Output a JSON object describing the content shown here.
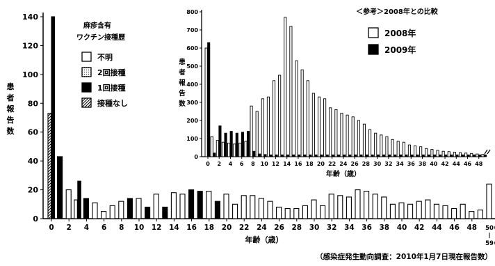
{
  "chart_data": [
    {
      "type": "bar",
      "title": "",
      "ylabel": "患者報告数",
      "xlabel": "年齢（歳）",
      "ylim": [
        0,
        140
      ],
      "yticks": [
        0,
        20,
        40,
        60,
        80,
        100,
        120,
        140
      ],
      "x_tick_labels": [
        "0",
        "2",
        "4",
        "6",
        "8",
        "10",
        "12",
        "14",
        "16",
        "18",
        "20",
        "22",
        "24",
        "26",
        "28",
        "30",
        "32",
        "34",
        "36",
        "38",
        "40",
        "42",
        "44",
        "46",
        "48"
      ],
      "x_tick_labels_tail": [
        "50",
        "60",
        "70",
        "80"
      ],
      "x_tick_labels_tail_low": [
        "59",
        "69",
        "79"
      ],
      "legend_title_line1": "麻疹含有",
      "legend_title_line2": "ワクチン接種歴",
      "legend": [
        {
          "label": "不明",
          "pattern": "white"
        },
        {
          "label": "2回接種",
          "pattern": "dotted"
        },
        {
          "label": "1回接種",
          "pattern": "black"
        },
        {
          "label": "接種なし",
          "pattern": "hatched"
        }
      ],
      "groups": [
        "0",
        "1",
        "2",
        "3",
        "4",
        "5",
        "6",
        "7",
        "8",
        "9",
        "10",
        "11",
        "12",
        "13",
        "14",
        "15",
        "16",
        "17",
        "18",
        "19",
        "20",
        "21",
        "22",
        "23",
        "24",
        "25",
        "26",
        "27",
        "28",
        "29",
        "30",
        "31",
        "32",
        "33",
        "34",
        "35",
        "36",
        "37",
        "38",
        "39",
        "40",
        "41",
        "42",
        "43",
        "44",
        "45",
        "46",
        "47",
        "48",
        "49",
        "50-59",
        "60-69",
        "70-79",
        "80-"
      ],
      "bars": [
        [
          {
            "v": 73,
            "p": "hatched"
          },
          {
            "v": 140,
            "p": "black"
          }
        ],
        [
          {
            "v": 43,
            "p": "black"
          }
        ],
        [
          {
            "v": 20,
            "p": "white"
          }
        ],
        [
          {
            "v": 13,
            "p": "white"
          },
          {
            "v": 26,
            "p": "black"
          }
        ],
        [
          {
            "v": 14,
            "p": "black"
          }
        ],
        [
          {
            "v": 11,
            "p": "white"
          }
        ],
        [
          {
            "v": 5,
            "p": "white"
          }
        ],
        [
          {
            "v": 9,
            "p": "white"
          }
        ],
        [
          {
            "v": 12,
            "p": "white"
          }
        ],
        [
          {
            "v": 14,
            "p": "black"
          }
        ],
        [
          {
            "v": 14,
            "p": "white"
          }
        ],
        [
          {
            "v": 8,
            "p": "black"
          }
        ],
        [
          {
            "v": 17,
            "p": "white"
          }
        ],
        [
          {
            "v": 8,
            "p": "black"
          }
        ],
        [
          {
            "v": 18,
            "p": "white"
          }
        ],
        [
          {
            "v": 17,
            "p": "white"
          }
        ],
        [
          {
            "v": 20,
            "p": "black"
          }
        ],
        [
          {
            "v": 19,
            "p": "black"
          }
        ],
        [
          {
            "v": 19,
            "p": "white"
          }
        ],
        [
          {
            "v": 12,
            "p": "black"
          }
        ],
        [
          {
            "v": 17,
            "p": "white"
          }
        ],
        [
          {
            "v": 10,
            "p": "white"
          }
        ],
        [
          {
            "v": 16,
            "p": "white"
          }
        ],
        [
          {
            "v": 16,
            "p": "white"
          }
        ],
        [
          {
            "v": 14,
            "p": "white"
          }
        ],
        [
          {
            "v": 12,
            "p": "white"
          }
        ],
        [
          {
            "v": 8,
            "p": "white"
          }
        ],
        [
          {
            "v": 7,
            "p": "white"
          }
        ],
        [
          {
            "v": 7,
            "p": "white"
          }
        ],
        [
          {
            "v": 9,
            "p": "white"
          }
        ],
        [
          {
            "v": 13,
            "p": "white"
          }
        ],
        [
          {
            "v": 9,
            "p": "white"
          }
        ],
        [
          {
            "v": 17,
            "p": "white"
          }
        ],
        [
          {
            "v": 16,
            "p": "white"
          }
        ],
        [
          {
            "v": 15,
            "p": "white"
          }
        ],
        [
          {
            "v": 20,
            "p": "white"
          }
        ],
        [
          {
            "v": 19,
            "p": "white"
          }
        ],
        [
          {
            "v": 17,
            "p": "white"
          }
        ],
        [
          {
            "v": 15,
            "p": "white"
          }
        ],
        [
          {
            "v": 10,
            "p": "white"
          }
        ],
        [
          {
            "v": 11,
            "p": "white"
          }
        ],
        [
          {
            "v": 10,
            "p": "white"
          }
        ],
        [
          {
            "v": 12,
            "p": "white"
          }
        ],
        [
          {
            "v": 13,
            "p": "white"
          }
        ],
        [
          {
            "v": 10,
            "p": "white"
          }
        ],
        [
          {
            "v": 9,
            "p": "white"
          }
        ],
        [
          {
            "v": 7,
            "p": "white"
          }
        ],
        [
          {
            "v": 10,
            "p": "white"
          }
        ],
        [
          {
            "v": 5,
            "p": "white"
          }
        ],
        [
          {
            "v": 6,
            "p": "white"
          }
        ],
        [
          {
            "v": 24,
            "p": "white"
          }
        ],
        [
          {
            "v": 15,
            "p": "white"
          }
        ],
        [
          {
            "v": 15,
            "p": "white"
          }
        ],
        [
          {
            "v": 2,
            "p": "white"
          }
        ]
      ],
      "source_note": "（感染症発生動向調査：2010年1月7日現在報告数）"
    },
    {
      "type": "bar",
      "title": "＜参考＞2008年との比較",
      "ylabel": "患者報告数",
      "xlabel": "年齢（歳）",
      "ylim": [
        0,
        800
      ],
      "yticks": [
        0,
        100,
        200,
        300,
        400,
        500,
        600,
        700,
        800
      ],
      "x_tick_labels": [
        "0",
        "2",
        "4",
        "6",
        "8",
        "10",
        "12",
        "14",
        "16",
        "18",
        "20",
        "22",
        "24",
        "26",
        "28",
        "30",
        "32",
        "34",
        "36",
        "38",
        "40",
        "42",
        "44",
        "46",
        "48"
      ],
      "series": [
        {
          "name": "2008年",
          "pattern": "white",
          "values": [
            600,
            110,
            90,
            80,
            75,
            70,
            75,
            85,
            280,
            250,
            320,
            330,
            420,
            450,
            770,
            720,
            530,
            480,
            420,
            350,
            330,
            320,
            270,
            260,
            240,
            230,
            220,
            200,
            180,
            150,
            130,
            120,
            110,
            95,
            85,
            80,
            65,
            60,
            55,
            45,
            40,
            35,
            30,
            28,
            25,
            22,
            20,
            18,
            15,
            13
          ]
        },
        {
          "name": "2009年",
          "pattern": "black",
          "values": [
            630,
            20,
            170,
            130,
            140,
            130,
            135,
            140,
            30,
            15,
            12,
            10,
            10,
            10,
            10,
            10,
            10,
            10,
            10,
            10,
            10,
            10,
            10,
            10,
            10,
            10,
            10,
            10,
            10,
            10,
            10,
            10,
            10,
            10,
            10,
            10,
            10,
            10,
            10,
            10,
            10,
            10,
            10,
            10,
            10,
            10,
            10,
            10,
            10,
            10
          ]
        }
      ]
    }
  ]
}
